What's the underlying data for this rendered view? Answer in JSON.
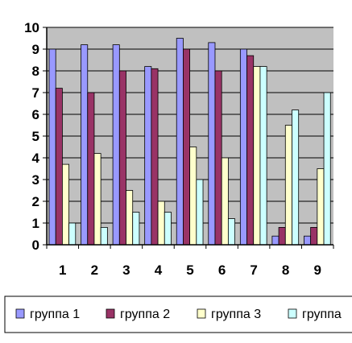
{
  "chart_data": {
    "type": "bar",
    "categories": [
      "1",
      "2",
      "3",
      "4",
      "5",
      "6",
      "7",
      "8",
      "9"
    ],
    "series": [
      {
        "name": "группа 1",
        "color": "#9999FF",
        "values": [
          9.0,
          9.2,
          9.2,
          8.2,
          9.5,
          9.3,
          9.0,
          0.4,
          0.4
        ]
      },
      {
        "name": "группа 2",
        "color": "#993366",
        "values": [
          7.2,
          7.0,
          8.0,
          8.1,
          9.0,
          8.0,
          8.7,
          0.8,
          0.8
        ]
      },
      {
        "name": "группа 3",
        "color": "#FFFFCC",
        "values": [
          3.7,
          4.2,
          2.5,
          2.0,
          4.5,
          4.0,
          8.2,
          5.5,
          3.5
        ]
      },
      {
        "name": "группа",
        "color": "#CCFFFF",
        "values": [
          1.0,
          0.8,
          1.5,
          1.5,
          3.0,
          1.2,
          8.2,
          6.2,
          7.0
        ]
      }
    ],
    "y_ticks": [
      "0",
      "1",
      "2",
      "3",
      "4",
      "5",
      "6",
      "7",
      "8",
      "9",
      "10"
    ],
    "ylim": [
      0,
      10
    ],
    "grid": true,
    "plot_background": "#C0C0C0",
    "legend_position": "bottom"
  }
}
